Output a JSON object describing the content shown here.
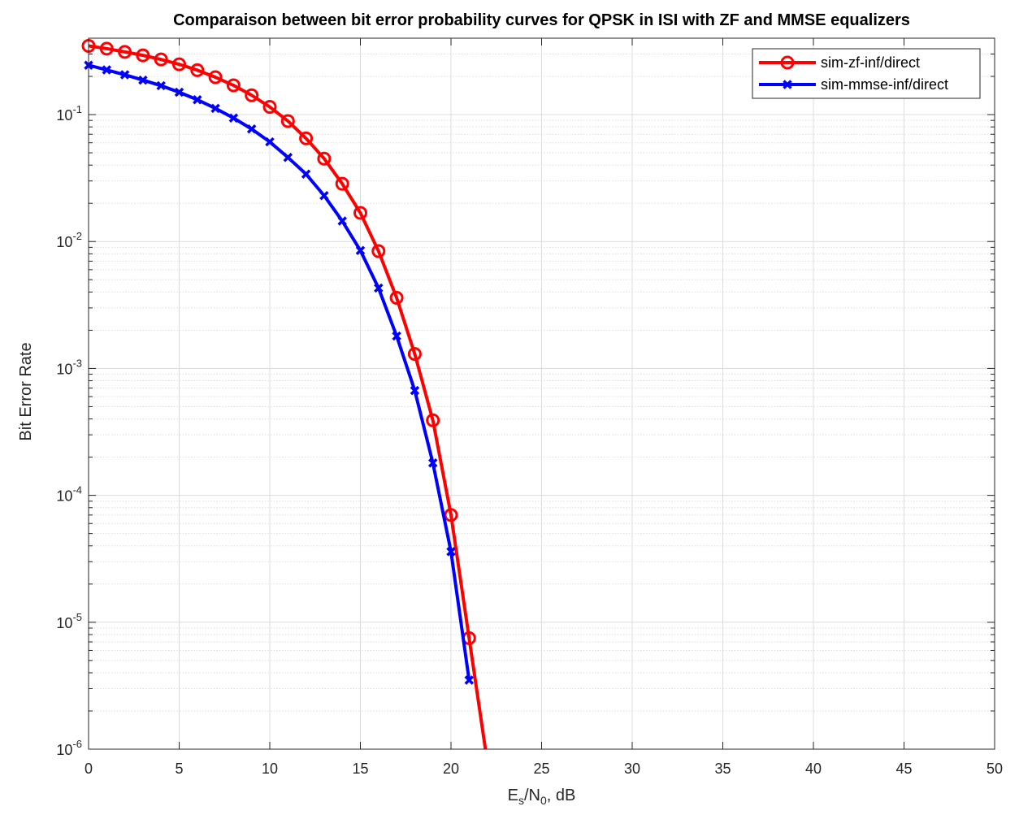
{
  "chart_data": {
    "type": "line",
    "title": "Comparaison between bit error probability curves for QPSK in ISI with ZF and MMSE equalizers",
    "xlabel": {
      "base": "E",
      "sub1": "s",
      "mid": "/N",
      "sub2": "0",
      "tail": ",  dB"
    },
    "ylabel": "Bit Error Rate",
    "xlim": [
      0,
      50
    ],
    "ylim": [
      1e-06,
      0.4
    ],
    "yscale": "log",
    "xticks": [
      0,
      5,
      10,
      15,
      20,
      25,
      30,
      35,
      40,
      45,
      50
    ],
    "xtick_labels": [
      "0",
      "5",
      "10",
      "15",
      "20",
      "25",
      "30",
      "35",
      "40",
      "45",
      "50"
    ],
    "yticks": [
      {
        "value": 1e-06,
        "base": "10",
        "exp": "-6"
      },
      {
        "value": 1e-05,
        "base": "10",
        "exp": "-5"
      },
      {
        "value": 0.0001,
        "base": "10",
        "exp": "-4"
      },
      {
        "value": 0.001,
        "base": "10",
        "exp": "-3"
      },
      {
        "value": 0.01,
        "base": "10",
        "exp": "-2"
      },
      {
        "value": 0.1,
        "base": "10",
        "exp": "-1"
      }
    ],
    "grid": true,
    "minor_grid": true,
    "legend_position": "top-right",
    "series": [
      {
        "name": "sim-zf-inf/direct",
        "color": "#ff0000",
        "marker": "circle",
        "x": [
          0,
          1,
          2,
          3,
          4,
          5,
          6,
          7,
          8,
          9,
          10,
          11,
          12,
          13,
          14,
          15,
          16,
          17,
          18,
          19,
          20,
          21
        ],
        "y": [
          0.348,
          0.331,
          0.312,
          0.293,
          0.272,
          0.249,
          0.224,
          0.197,
          0.17,
          0.142,
          0.115,
          0.089,
          0.065,
          0.045,
          0.0285,
          0.0168,
          0.0084,
          0.0036,
          0.0013,
          0.00039,
          7e-05,
          7.5e-06
        ],
        "tail": {
          "x": 21.9,
          "y": 1e-06
        }
      },
      {
        "name": "sim-mmse-inf/direct",
        "color": "#0000ff",
        "marker": "x",
        "x": [
          0,
          1,
          2,
          3,
          4,
          5,
          6,
          7,
          8,
          9,
          10,
          11,
          12,
          13,
          14,
          15,
          16,
          17,
          18,
          19,
          20,
          21
        ],
        "y": [
          0.245,
          0.225,
          0.206,
          0.187,
          0.169,
          0.15,
          0.131,
          0.112,
          0.094,
          0.077,
          0.061,
          0.046,
          0.034,
          0.023,
          0.0145,
          0.0085,
          0.0043,
          0.0018,
          0.00067,
          0.00018,
          3.6e-05,
          3.5e-06
        ]
      }
    ]
  }
}
